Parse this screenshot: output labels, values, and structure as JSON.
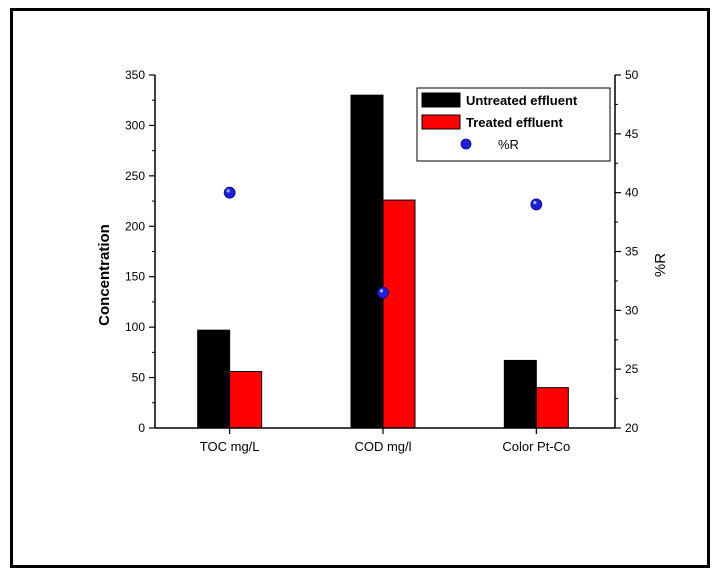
{
  "chart_data": {
    "type": "bar",
    "categories": [
      "TOC mg/L",
      "COD mg/l",
      "Color Pt-Co"
    ],
    "series": [
      {
        "name": "Untreated effluent",
        "values": [
          97,
          330,
          67
        ],
        "color": "#000000",
        "axis": "left"
      },
      {
        "name": "Treated effluent",
        "values": [
          56,
          226,
          40
        ],
        "color": "#ff0000",
        "axis": "left"
      }
    ],
    "overlay": {
      "name": "%R",
      "type": "scatter",
      "values": [
        40,
        31.5,
        39
      ],
      "color": "#1f1fd6",
      "axis": "right"
    },
    "ylabel": "Concentration",
    "y2label": "%R",
    "ylim": [
      0,
      350
    ],
    "y2lim": [
      20,
      50
    ],
    "yticks": [
      "0",
      "50",
      "100",
      "150",
      "200",
      "250",
      "300",
      "350"
    ],
    "y2ticks": [
      "20",
      "25",
      "30",
      "35",
      "40",
      "45",
      "50"
    ],
    "grid": false,
    "legend_position": "top-right"
  }
}
